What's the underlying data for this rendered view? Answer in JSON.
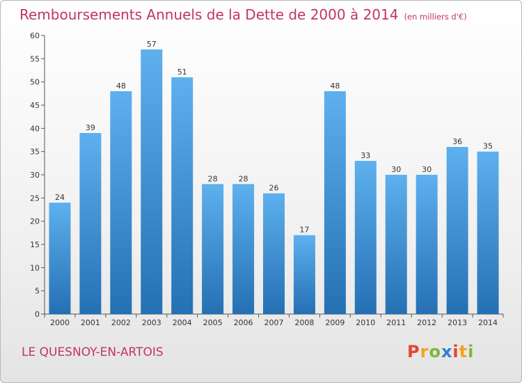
{
  "chart_data": {
    "type": "bar",
    "title": "Remboursements Annuels de la Dette de 2000 à 2014",
    "unit": "(en milliers d'€)",
    "categories": [
      "2000",
      "2001",
      "2002",
      "2003",
      "2004",
      "2005",
      "2006",
      "2007",
      "2008",
      "2009",
      "2010",
      "2011",
      "2012",
      "2013",
      "2014"
    ],
    "values": [
      24,
      39,
      48,
      57,
      51,
      28,
      28,
      26,
      17,
      48,
      33,
      30,
      30,
      36,
      35
    ],
    "ylim": [
      0,
      60
    ],
    "yticks": [
      0,
      5,
      10,
      15,
      20,
      25,
      30,
      35,
      40,
      45,
      50,
      55,
      60
    ],
    "grid": false,
    "bar_color": "#3d93d8"
  },
  "commune": "LE QUESNOY-EN-ARTOIS",
  "logo": {
    "letters": [
      "P",
      "r",
      "o",
      "x",
      "i",
      "t",
      "i"
    ],
    "colors": [
      "#e8452c",
      "#f2a31b",
      "#7ab83a",
      "#2f7fd0",
      "#e8452c",
      "#f2a31b",
      "#7ab83a"
    ]
  }
}
